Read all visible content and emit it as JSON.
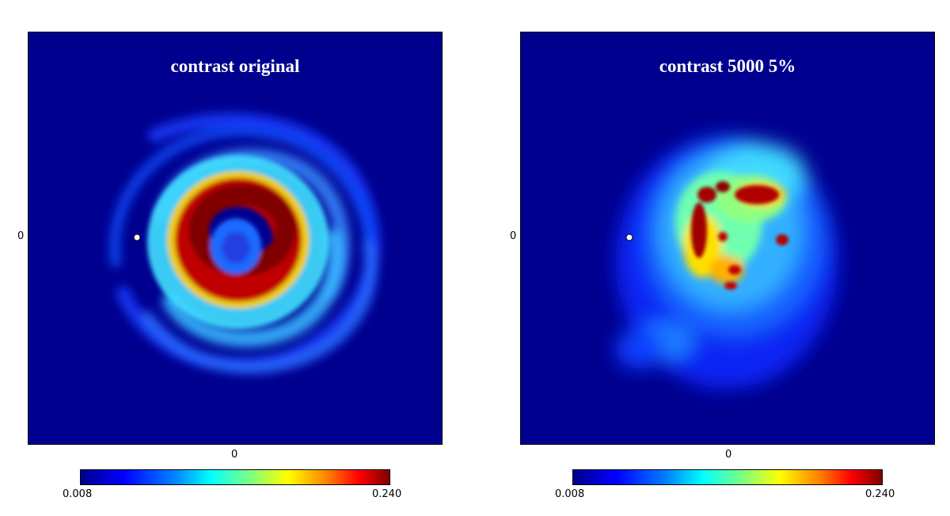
{
  "panels": [
    {
      "title": "contrast original",
      "x_tick": "0",
      "y_tick": "0",
      "colorbar": {
        "min_label": "0.008",
        "max_label": "0.240"
      }
    },
    {
      "title": "contrast 5000 5%",
      "x_tick": "0",
      "y_tick": "0",
      "colorbar": {
        "min_label": "0.008",
        "max_label": "0.240"
      }
    }
  ],
  "colors": {
    "background": "#00008f",
    "low": "#0000ff",
    "mid": "#00ffff",
    "high": "#ffff00",
    "peak": "#800000",
    "marker": "#ffffff"
  },
  "colormap": "jet"
}
